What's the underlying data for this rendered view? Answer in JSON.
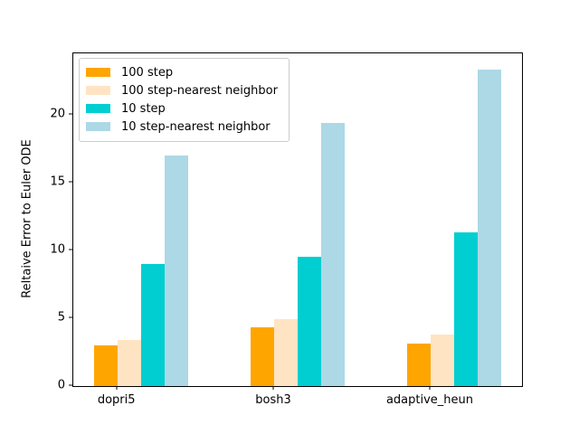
{
  "chart_data": {
    "type": "bar",
    "title": "",
    "xlabel": "",
    "ylabel": "Reltaive Error to Euler ODE",
    "categories": [
      "dopri5",
      "bosh3",
      "adaptive_heun"
    ],
    "series": [
      {
        "name": "100 step",
        "color": "#FFA500",
        "values": [
          3.0,
          4.3,
          3.1
        ]
      },
      {
        "name": "100 step-nearest neighbor",
        "color": "#FFE4C4",
        "values": [
          3.4,
          4.9,
          3.8
        ]
      },
      {
        "name": "10 step",
        "color": "#00CED1",
        "values": [
          9.0,
          9.5,
          11.3
        ]
      },
      {
        "name": "10 step-nearest neighbor",
        "color": "#ADD8E6",
        "values": [
          17.0,
          19.4,
          23.3
        ]
      }
    ],
    "yticks": [
      0,
      5,
      10,
      15,
      20
    ],
    "ylim": [
      0,
      24.5
    ],
    "grid": false,
    "legend_position": "upper left",
    "background_color": "#ffffff",
    "axis_color": "#000000"
  }
}
